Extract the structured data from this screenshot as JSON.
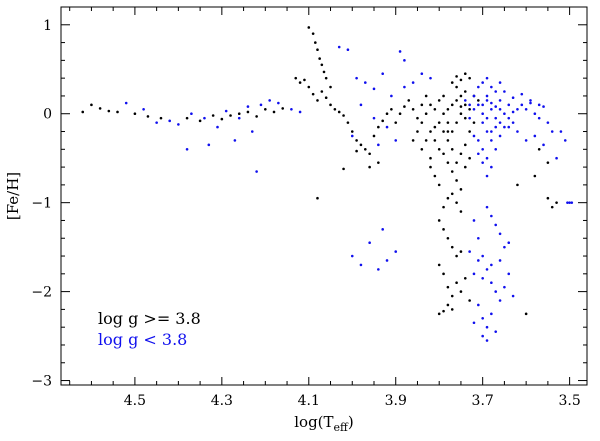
{
  "chart_data": {
    "type": "scatter",
    "title": "",
    "xlabel": "log(T",
    "xlabel_sub": "eff",
    "xlabel_close": ")",
    "ylabel": "[Fe/H]",
    "xlim": [
      4.67,
      3.46
    ],
    "ylim": [
      -3.05,
      1.2
    ],
    "x_reversed": true,
    "x_ticks": [
      4.5,
      4.3,
      4.1,
      3.9,
      3.7,
      3.5
    ],
    "x_tick_labels": [
      "4.5",
      "4.3",
      "4.1",
      "3.9",
      "3.7",
      "3.5"
    ],
    "y_ticks": [
      1,
      0,
      -1,
      -2,
      -3
    ],
    "y_tick_labels": [
      "1",
      "0",
      "−1",
      "−2",
      "−3"
    ],
    "grid": false,
    "legend_position": "bottom-left",
    "series": [
      {
        "name": "log g >= 3.8",
        "color": "#000000",
        "points": [
          [
            4.62,
            0.02
          ],
          [
            4.6,
            0.1
          ],
          [
            4.58,
            0.06
          ],
          [
            4.56,
            0.03
          ],
          [
            4.54,
            0.02
          ],
          [
            4.5,
            0.0
          ],
          [
            4.47,
            -0.03
          ],
          [
            4.44,
            -0.05
          ],
          [
            4.38,
            -0.05
          ],
          [
            4.35,
            -0.08
          ],
          [
            4.32,
            -0.02
          ],
          [
            4.3,
            -0.06
          ],
          [
            4.28,
            -0.02
          ],
          [
            4.26,
            0.0
          ],
          [
            4.24,
            0.02
          ],
          [
            4.22,
            -0.03
          ],
          [
            4.2,
            0.05
          ],
          [
            4.18,
            0.02
          ],
          [
            4.16,
            0.06
          ],
          [
            4.1,
            0.97
          ],
          [
            4.09,
            0.9
          ],
          [
            4.085,
            0.8
          ],
          [
            4.08,
            0.72
          ],
          [
            4.075,
            0.62
          ],
          [
            4.07,
            0.55
          ],
          [
            4.065,
            0.47
          ],
          [
            4.06,
            0.4
          ],
          [
            4.1,
            0.3
          ],
          [
            4.11,
            0.38
          ],
          [
            4.12,
            0.35
          ],
          [
            4.13,
            0.4
          ],
          [
            4.09,
            0.22
          ],
          [
            4.08,
            0.15
          ],
          [
            4.07,
            0.25
          ],
          [
            4.06,
            0.18
          ],
          [
            4.05,
            0.1
          ],
          [
            4.04,
            0.05
          ],
          [
            4.05,
            0.3
          ],
          [
            4.03,
            0.02
          ],
          [
            4.02,
            -0.02
          ],
          [
            4.01,
            -0.1
          ],
          [
            4.0,
            -0.2
          ],
          [
            3.99,
            -0.3
          ],
          [
            3.98,
            -0.35
          ],
          [
            3.97,
            -0.4
          ],
          [
            3.96,
            -0.45
          ],
          [
            3.95,
            -0.25
          ],
          [
            3.94,
            -0.15
          ],
          [
            3.93,
            -0.08
          ],
          [
            3.92,
            0.0
          ],
          [
            3.91,
            0.05
          ],
          [
            4.08,
            -0.95
          ],
          [
            4.02,
            -0.62
          ],
          [
            3.99,
            -0.42
          ],
          [
            3.96,
            -0.6
          ],
          [
            3.94,
            -0.55
          ],
          [
            3.9,
            -0.1
          ],
          [
            3.89,
            0.0
          ],
          [
            3.88,
            0.08
          ],
          [
            3.87,
            0.15
          ],
          [
            3.86,
            0.05
          ],
          [
            3.85,
            -0.05
          ],
          [
            3.84,
            0.1
          ],
          [
            3.83,
            0.2
          ],
          [
            3.82,
            -0.5
          ],
          [
            3.82,
            -0.6
          ],
          [
            3.81,
            -0.7
          ],
          [
            3.8,
            -0.8
          ],
          [
            3.81,
            -0.3
          ],
          [
            3.8,
            -0.4
          ],
          [
            3.79,
            -0.2
          ],
          [
            3.78,
            -0.1
          ],
          [
            3.8,
            -0.1
          ],
          [
            3.79,
            0.0
          ],
          [
            3.78,
            0.05
          ],
          [
            3.77,
            0.1
          ],
          [
            3.76,
            0.15
          ],
          [
            3.75,
            0.2
          ],
          [
            3.74,
            0.25
          ],
          [
            3.76,
            0.3
          ],
          [
            3.75,
            0.38
          ],
          [
            3.74,
            0.45
          ],
          [
            3.73,
            0.4
          ],
          [
            3.74,
            0.1
          ],
          [
            3.75,
            0.0
          ],
          [
            3.76,
            -0.1
          ],
          [
            3.77,
            -0.2
          ],
          [
            3.78,
            -0.3
          ],
          [
            3.79,
            -0.45
          ],
          [
            3.78,
            -0.55
          ],
          [
            3.77,
            -0.65
          ],
          [
            3.76,
            -0.75
          ],
          [
            3.75,
            -0.85
          ],
          [
            3.77,
            -0.9
          ],
          [
            3.76,
            -1.0
          ],
          [
            3.75,
            -1.1
          ],
          [
            3.78,
            -0.95
          ],
          [
            3.79,
            -1.05
          ],
          [
            3.8,
            -1.2
          ],
          [
            3.79,
            -1.3
          ],
          [
            3.78,
            -1.4
          ],
          [
            3.77,
            -1.5
          ],
          [
            3.76,
            -1.6
          ],
          [
            3.75,
            -1.55
          ],
          [
            3.74,
            -0.6
          ],
          [
            3.73,
            -0.5
          ],
          [
            3.74,
            -0.35
          ],
          [
            3.73,
            -0.2
          ],
          [
            3.75,
            -0.45
          ],
          [
            3.76,
            -0.55
          ],
          [
            3.77,
            -0.4
          ],
          [
            3.78,
            -0.2
          ],
          [
            3.8,
            -1.7
          ],
          [
            3.79,
            -1.8
          ],
          [
            3.78,
            -1.95
          ],
          [
            3.77,
            -2.05
          ],
          [
            3.78,
            -2.15
          ],
          [
            3.79,
            -2.22
          ],
          [
            3.8,
            -2.25
          ],
          [
            3.77,
            -2.2
          ],
          [
            3.76,
            -1.9
          ],
          [
            3.75,
            -2.0
          ],
          [
            3.74,
            -1.85
          ],
          [
            3.73,
            -2.1
          ],
          [
            3.82,
            0.1
          ],
          [
            3.83,
            0.0
          ],
          [
            3.84,
            -0.1
          ],
          [
            3.85,
            -0.2
          ],
          [
            3.86,
            -0.3
          ],
          [
            3.84,
            -0.4
          ],
          [
            3.83,
            -0.3
          ],
          [
            3.82,
            -0.2
          ],
          [
            3.81,
            0.05
          ],
          [
            3.8,
            0.15
          ],
          [
            3.79,
            0.2
          ],
          [
            3.81,
            -0.15
          ],
          [
            3.77,
            0.35
          ],
          [
            3.76,
            0.42
          ],
          [
            3.75,
            0.08
          ],
          [
            3.74,
            -0.05
          ],
          [
            3.72,
            0.2
          ],
          [
            3.73,
            0.05
          ],
          [
            3.72,
            -0.1
          ],
          [
            3.71,
            0.15
          ],
          [
            3.6,
            -2.25
          ],
          [
            3.55,
            -0.95
          ],
          [
            3.54,
            -1.05
          ],
          [
            3.53,
            -1.0
          ],
          [
            3.57,
            -0.4
          ],
          [
            3.55,
            -0.55
          ],
          [
            3.62,
            -0.8
          ],
          [
            3.58,
            -0.7
          ]
        ]
      },
      {
        "name": "log g < 3.8",
        "color": "#1010ee",
        "points": [
          [
            4.52,
            0.12
          ],
          [
            4.48,
            0.05
          ],
          [
            4.45,
            -0.1
          ],
          [
            4.42,
            -0.08
          ],
          [
            4.4,
            -0.12
          ],
          [
            4.37,
            0.0
          ],
          [
            4.34,
            -0.05
          ],
          [
            4.31,
            -0.15
          ],
          [
            4.29,
            0.03
          ],
          [
            4.26,
            -0.05
          ],
          [
            4.24,
            0.08
          ],
          [
            4.21,
            0.1
          ],
          [
            4.19,
            0.15
          ],
          [
            4.17,
            0.12
          ],
          [
            4.14,
            0.05
          ],
          [
            4.12,
            0.02
          ],
          [
            4.38,
            -0.4
          ],
          [
            4.33,
            -0.35
          ],
          [
            4.22,
            -0.65
          ],
          [
            4.27,
            -0.3
          ],
          [
            4.23,
            -0.2
          ],
          [
            4.03,
            0.75
          ],
          [
            4.01,
            0.72
          ],
          [
            3.99,
            0.4
          ],
          [
            3.97,
            0.35
          ],
          [
            3.95,
            0.28
          ],
          [
            3.93,
            0.45
          ],
          [
            3.91,
            0.2
          ],
          [
            3.89,
            0.7
          ],
          [
            3.88,
            0.6
          ],
          [
            3.92,
            -0.15
          ],
          [
            3.95,
            -0.05
          ],
          [
            3.98,
            0.1
          ],
          [
            4.0,
            -0.25
          ],
          [
            3.94,
            -0.35
          ],
          [
            3.9,
            -0.3
          ],
          [
            4.0,
            -1.6
          ],
          [
            3.98,
            -1.7
          ],
          [
            3.96,
            -1.45
          ],
          [
            3.94,
            -1.75
          ],
          [
            3.92,
            -1.65
          ],
          [
            3.9,
            -1.55
          ],
          [
            3.93,
            -1.3
          ],
          [
            3.88,
            0.3
          ],
          [
            3.86,
            0.35
          ],
          [
            3.84,
            0.45
          ],
          [
            3.82,
            0.4
          ],
          [
            3.7,
            0.1
          ],
          [
            3.69,
            0.2
          ],
          [
            3.68,
            0.05
          ],
          [
            3.67,
            -0.05
          ],
          [
            3.66,
            0.15
          ],
          [
            3.65,
            0.25
          ],
          [
            3.64,
            0.1
          ],
          [
            3.63,
            -0.1
          ],
          [
            3.7,
            -0.1
          ],
          [
            3.69,
            -0.2
          ],
          [
            3.68,
            -0.3
          ],
          [
            3.67,
            -0.4
          ],
          [
            3.66,
            -0.25
          ],
          [
            3.65,
            -0.15
          ],
          [
            3.64,
            -0.05
          ],
          [
            3.62,
            0.05
          ],
          [
            3.71,
            0.3
          ],
          [
            3.7,
            0.35
          ],
          [
            3.69,
            0.4
          ],
          [
            3.68,
            0.3
          ],
          [
            3.67,
            0.25
          ],
          [
            3.66,
            0.35
          ],
          [
            3.72,
            0.2
          ],
          [
            3.73,
            0.1
          ],
          [
            3.71,
            -0.3
          ],
          [
            3.7,
            -0.4
          ],
          [
            3.69,
            -0.5
          ],
          [
            3.68,
            -0.6
          ],
          [
            3.69,
            -0.7
          ],
          [
            3.7,
            -0.55
          ],
          [
            3.71,
            -0.45
          ],
          [
            3.72,
            -0.25
          ],
          [
            3.61,
            0.1
          ],
          [
            3.6,
            0.05
          ],
          [
            3.59,
            0.12
          ],
          [
            3.58,
            0.0
          ],
          [
            3.57,
            -0.05
          ],
          [
            3.56,
            0.08
          ],
          [
            3.55,
            -0.1
          ],
          [
            3.54,
            -0.2
          ],
          [
            3.62,
            -0.2
          ],
          [
            3.6,
            -0.3
          ],
          [
            3.58,
            -0.25
          ],
          [
            3.56,
            -0.35
          ],
          [
            3.63,
            0.18
          ],
          [
            3.61,
            0.22
          ],
          [
            3.59,
            0.15
          ],
          [
            3.57,
            0.1
          ],
          [
            3.74,
            0.15
          ],
          [
            3.73,
            -0.05
          ],
          [
            3.72,
            0.05
          ],
          [
            3.71,
            0.1
          ],
          [
            3.7,
            0.0
          ],
          [
            3.69,
            -0.05
          ],
          [
            3.68,
            0.12
          ],
          [
            3.67,
            0.08
          ],
          [
            3.66,
            -0.1
          ],
          [
            3.65,
            0.0
          ],
          [
            3.64,
            -0.15
          ],
          [
            3.63,
            0.02
          ],
          [
            3.66,
            0.05
          ],
          [
            3.67,
            -0.15
          ],
          [
            3.68,
            -0.2
          ],
          [
            3.69,
            0.15
          ],
          [
            3.72,
            -1.2
          ],
          [
            3.71,
            -1.4
          ],
          [
            3.7,
            -1.6
          ],
          [
            3.69,
            -1.75
          ],
          [
            3.68,
            -1.9
          ],
          [
            3.67,
            -2.0
          ],
          [
            3.66,
            -2.1
          ],
          [
            3.65,
            -1.95
          ],
          [
            3.64,
            -1.8
          ],
          [
            3.63,
            -2.05
          ],
          [
            3.68,
            -2.25
          ],
          [
            3.69,
            -2.4
          ],
          [
            3.7,
            -2.5
          ],
          [
            3.69,
            -2.55
          ],
          [
            3.7,
            -2.3
          ],
          [
            3.71,
            -2.15
          ],
          [
            3.72,
            -1.8
          ],
          [
            3.71,
            -1.65
          ],
          [
            3.7,
            -1.85
          ],
          [
            3.69,
            -1.05
          ],
          [
            3.68,
            -1.15
          ],
          [
            3.67,
            -1.25
          ],
          [
            3.66,
            -1.35
          ],
          [
            3.65,
            -1.5
          ],
          [
            3.64,
            -1.45
          ],
          [
            3.72,
            -2.35
          ],
          [
            3.67,
            -2.45
          ],
          [
            3.73,
            -1.55
          ],
          [
            3.68,
            -1.7
          ],
          [
            3.66,
            -1.65
          ],
          [
            3.505,
            -1.0
          ],
          [
            3.5,
            -1.0
          ],
          [
            3.495,
            -1.0
          ],
          [
            3.52,
            -0.2
          ],
          [
            3.53,
            -0.5
          ],
          [
            3.51,
            -0.3
          ]
        ]
      }
    ]
  }
}
